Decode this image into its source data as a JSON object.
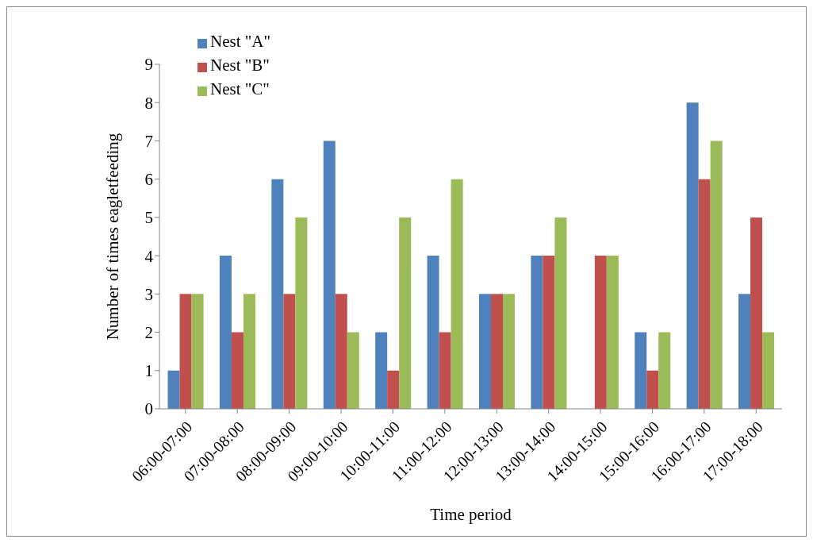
{
  "chart_data": {
    "type": "bar",
    "xlabel": "Time period",
    "ylabel": "Number of times eagletfeeding",
    "categories": [
      "06:00-07:00",
      "07:00-08:00",
      "08:00-09:00",
      "09:00-10:00",
      "10:00-11:00",
      "11:00-12:00",
      "12:00-13:00",
      "13:00-14:00",
      "14:00-15:00",
      "15:00-16:00",
      "16:00-17:00",
      "17:00-18:00"
    ],
    "series": [
      {
        "name": "Nest \"A\"",
        "color": "#4f81bd",
        "values": [
          1,
          4,
          6,
          7,
          2,
          4,
          3,
          4,
          0,
          2,
          8,
          3
        ]
      },
      {
        "name": "Nest \"B\"",
        "color": "#c0504d",
        "values": [
          3,
          2,
          3,
          3,
          1,
          2,
          3,
          4,
          4,
          1,
          6,
          5
        ]
      },
      {
        "name": "Nest \"C\"",
        "color": "#9bbb59",
        "values": [
          3,
          3,
          5,
          2,
          5,
          6,
          3,
          5,
          4,
          2,
          7,
          2
        ]
      }
    ],
    "ylim": [
      0,
      9
    ],
    "yticks": [
      0,
      1,
      2,
      3,
      4,
      5,
      6,
      7,
      8,
      9
    ],
    "legend": "top left"
  }
}
